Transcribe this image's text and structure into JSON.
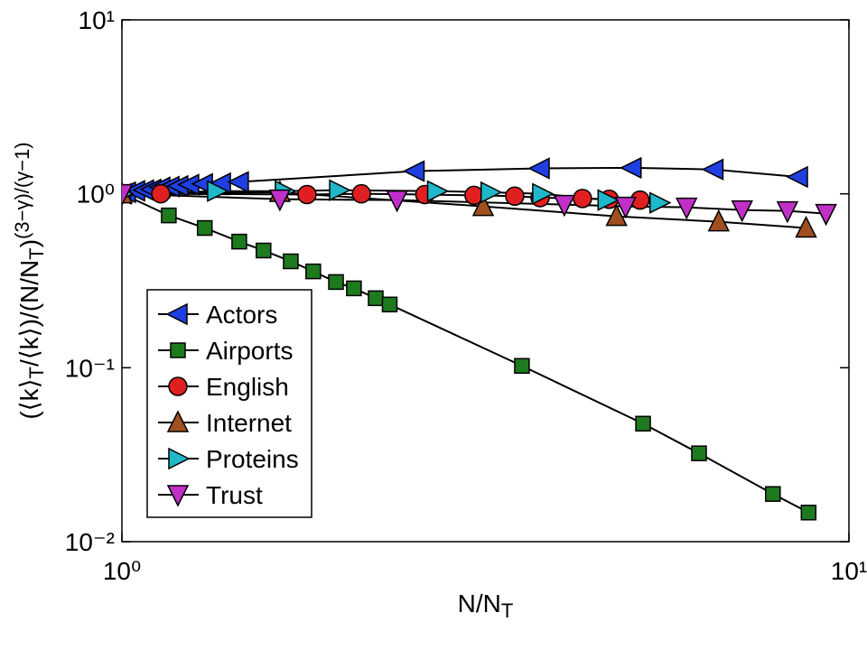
{
  "chart_data": {
    "type": "line",
    "log_x": true,
    "log_y": true,
    "xlabel": [
      {
        "text": "N/N"
      },
      {
        "text": "T",
        "sub": true
      }
    ],
    "ylabel": [
      {
        "text": "(⟨k⟩"
      },
      {
        "text": "T",
        "sub": true
      },
      {
        "text": "/⟨k⟩)/(N/N"
      },
      {
        "text": "T",
        "sub": true
      },
      {
        "text": ")"
      },
      {
        "text": "(3−γ)/(γ−1)",
        "sup": true
      }
    ],
    "xlim": [
      1,
      10
    ],
    "ylim": [
      0.01,
      10
    ],
    "xticks": [
      {
        "value": 1,
        "label": "10⁰"
      },
      {
        "value": 10,
        "label": "10¹"
      }
    ],
    "yticks": [
      {
        "value": 0.01,
        "label": "10⁻²"
      },
      {
        "value": 0.1,
        "label": "10⁻¹"
      },
      {
        "value": 1,
        "label": "10⁰"
      },
      {
        "value": 10,
        "label": "10¹"
      }
    ],
    "legend": "lower left",
    "series": [
      {
        "name": "Actors",
        "color": "#1f3fe0",
        "marker": "<",
        "x": [
          1,
          1.014,
          1.044,
          1.074,
          1.099,
          1.131,
          1.164,
          1.197,
          1.239,
          1.294,
          1.37,
          1.45,
          2.53,
          3.76,
          5.03,
          6.52,
          8.52
        ],
        "values": [
          1,
          1.02,
          1.04,
          1.05,
          1.06,
          1.09,
          1.1,
          1.11,
          1.13,
          1.14,
          1.15,
          1.17,
          1.35,
          1.4,
          1.41,
          1.38,
          1.25
        ]
      },
      {
        "name": "Airports",
        "color": "#1e7a1e",
        "marker": "s",
        "x": [
          1,
          1.16,
          1.3,
          1.45,
          1.566,
          1.707,
          1.833,
          1.97,
          2.085,
          2.234,
          2.335,
          3.55,
          5.21,
          6.22,
          7.86,
          8.8
        ],
        "values": [
          1,
          0.751,
          0.636,
          0.531,
          0.472,
          0.409,
          0.358,
          0.311,
          0.286,
          0.251,
          0.231,
          0.1025,
          0.0477,
          0.0322,
          0.0188,
          0.0147
        ]
      },
      {
        "name": "English",
        "color": "#e02020",
        "marker": "o",
        "x": [
          1,
          1.131,
          1.797,
          2.135,
          2.61,
          3.05,
          3.47,
          3.76,
          4.3,
          4.68,
          5.16
        ],
        "values": [
          1,
          1.0,
          0.99,
          1.0,
          0.99,
          0.98,
          0.97,
          0.95,
          0.94,
          0.93,
          0.92
        ]
      },
      {
        "name": "Internet",
        "color": "#a0501e",
        "marker": "^",
        "x": [
          1,
          1.649,
          3.14,
          4.79,
          6.62,
          8.73
        ],
        "values": [
          1,
          1.02,
          0.846,
          0.742,
          0.691,
          0.636
        ]
      },
      {
        "name": "Proteins",
        "color": "#20b8c8",
        "marker": ">",
        "x": [
          1,
          1.35,
          1.673,
          1.987,
          2.71,
          3.21,
          3.78,
          4.65,
          5.48
        ],
        "values": [
          1,
          1.036,
          1.036,
          1.049,
          1.036,
          1.02,
          1.0,
          0.92,
          0.888
        ]
      },
      {
        "name": "Trust",
        "color": "#c030c8",
        "marker": "v",
        "x": [
          1,
          1.649,
          2.39,
          4.06,
          4.93,
          5.98,
          7.13,
          8.23,
          9.3
        ],
        "values": [
          1,
          0.931,
          0.92,
          0.867,
          0.846,
          0.836,
          0.807,
          0.797,
          0.769
        ]
      }
    ]
  }
}
